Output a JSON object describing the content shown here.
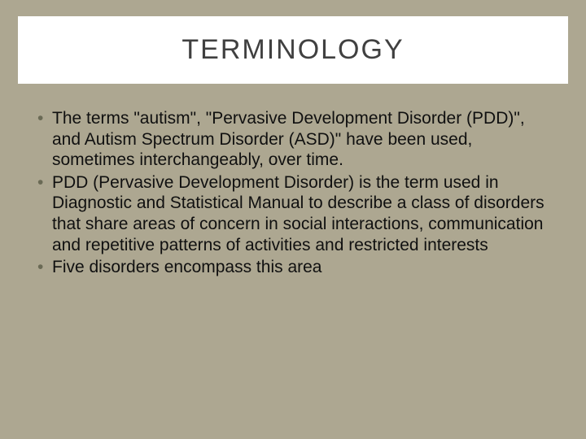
{
  "slide": {
    "title": "TERMINOLOGY",
    "title_fontsize": 34,
    "title_color": "#404040",
    "title_box_bg": "#ffffff",
    "background_color": "#ada791",
    "bullet_color": "#6a6a55",
    "text_color": "#101010",
    "body_fontsize": 21,
    "bullets": [
      "The terms \"autism\", \"Pervasive Development Disorder (PDD)\", and Autism Spectrum Disorder (ASD)\" have been used, sometimes interchangeably, over time.",
      "PDD (Pervasive Development Disorder) is the term used in Diagnostic and Statistical Manual to describe a class of disorders that share areas of concern in social interactions, communication and repetitive patterns of activities and restricted interests",
      "Five disorders encompass this area"
    ]
  }
}
